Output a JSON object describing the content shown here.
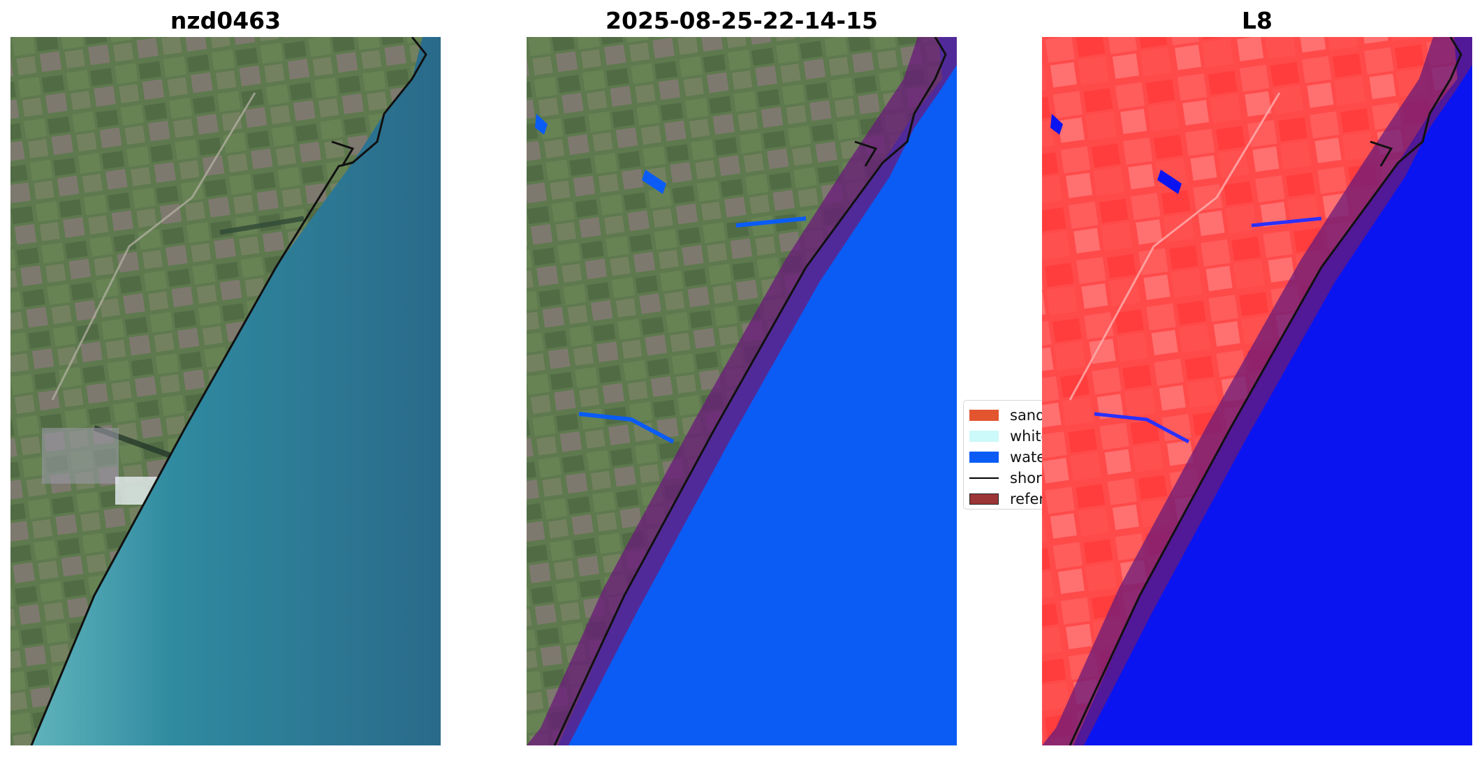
{
  "panels": [
    {
      "title": "nzd0463",
      "kind": "rgb-satellite-image"
    },
    {
      "title": "2025-08-25-22-14-15",
      "kind": "classified-image-overlay"
    },
    {
      "title": "L8",
      "kind": "water-index-image"
    }
  ],
  "legend": {
    "items": [
      {
        "label": "sand",
        "color": "#e2552f",
        "type": "patch"
      },
      {
        "label": "white-water",
        "color": "#ccf9fa",
        "type": "patch"
      },
      {
        "label": "water",
        "color": "#0a5cf5",
        "type": "patch"
      },
      {
        "label": "shoreline",
        "color": "#000000",
        "type": "line"
      },
      {
        "label": "reference shoreline buffer",
        "color": "#9c3536",
        "type": "patch"
      }
    ]
  },
  "colors": {
    "land_green": "#5e7a4a",
    "sea_teal": "#2f7f97",
    "water_class": "#0a5cf5",
    "buffer_overlay": "#6a1a7a",
    "index_red": "#ff4a4a",
    "index_blue": "#0a14f0"
  }
}
